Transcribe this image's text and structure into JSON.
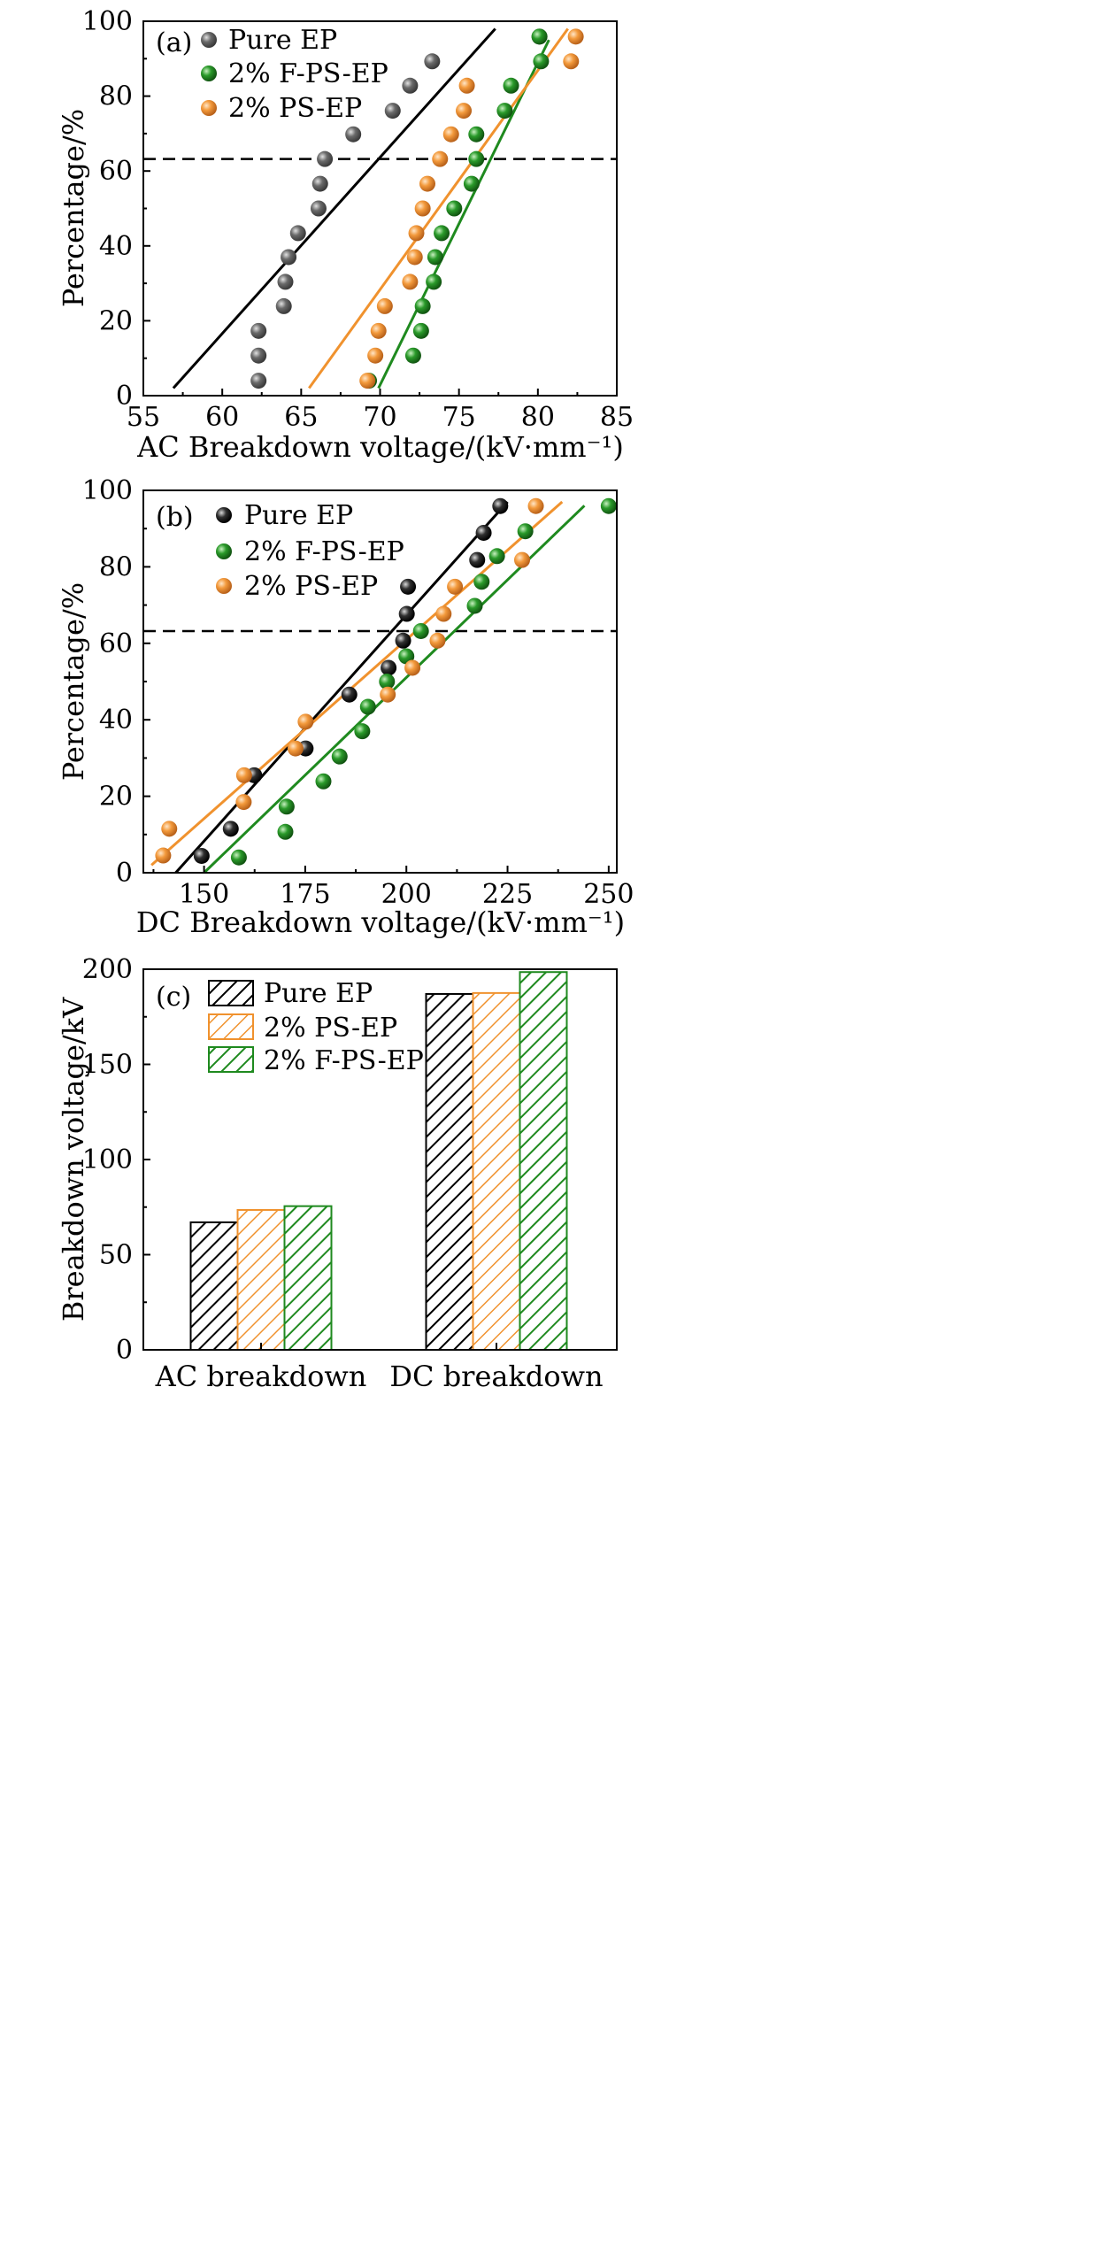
{
  "colors": {
    "pure": "#000000",
    "pure_marker_a": "#555555",
    "ps": "#f0922e",
    "fps": "#1f8a1f",
    "dash": "#000000"
  },
  "chart_data": [
    {
      "type": "scatter",
      "panel_label": "(a)",
      "xlabel": "AC Breakdown voltage/(kV·mm⁻¹)",
      "ylabel": "Percentage/%",
      "xlim": [
        55,
        85
      ],
      "ylim": [
        0,
        100
      ],
      "xticks": [
        55,
        60,
        65,
        70,
        75,
        80,
        85
      ],
      "yticks": [
        0,
        20,
        40,
        60,
        80,
        100
      ],
      "reference_line_y": 63.2,
      "legend": [
        "Pure EP",
        "2% F-PS-EP",
        "2% PS-EP"
      ],
      "legend_position": "top-left",
      "series": [
        {
          "name": "Pure EP",
          "color_key": "pure_marker_a",
          "line_color_key": "pure",
          "points": [
            [
              62.3,
              4
            ],
            [
              62.3,
              10.7
            ],
            [
              62.3,
              17.3
            ],
            [
              63.9,
              23.9
            ],
            [
              64.0,
              30.4
            ],
            [
              64.2,
              37
            ],
            [
              64.8,
              43.4
            ],
            [
              66.1,
              50
            ],
            [
              66.2,
              56.6
            ],
            [
              66.5,
              63.2
            ],
            [
              68.3,
              69.8
            ],
            [
              70.8,
              76.1
            ],
            [
              71.9,
              82.8
            ],
            [
              73.3,
              89.3
            ],
            [
              80.1,
              95.9
            ]
          ],
          "fit": [
            [
              56.9,
              2
            ],
            [
              77.3,
              98
            ]
          ]
        },
        {
          "name": "2% F-PS-EP",
          "color_key": "fps",
          "line_color_key": "fps",
          "points": [
            [
              69.3,
              4
            ],
            [
              72.1,
              10.7
            ],
            [
              72.6,
              17.3
            ],
            [
              72.7,
              23.9
            ],
            [
              73.4,
              30.4
            ],
            [
              73.5,
              37
            ],
            [
              73.9,
              43.4
            ],
            [
              74.7,
              50
            ],
            [
              75.8,
              56.6
            ],
            [
              76.1,
              63.2
            ],
            [
              76.1,
              69.8
            ],
            [
              77.9,
              76.1
            ],
            [
              78.3,
              82.8
            ],
            [
              80.2,
              89.3
            ],
            [
              80.1,
              95.9
            ]
          ],
          "fit": [
            [
              69.9,
              2
            ],
            [
              80.7,
              95
            ]
          ]
        },
        {
          "name": "2% PS-EP",
          "color_key": "ps",
          "line_color_key": "ps",
          "points": [
            [
              69.2,
              4
            ],
            [
              69.7,
              10.7
            ],
            [
              69.9,
              17.3
            ],
            [
              70.3,
              23.9
            ],
            [
              71.9,
              30.4
            ],
            [
              72.2,
              37
            ],
            [
              72.3,
              43.4
            ],
            [
              72.7,
              50
            ],
            [
              73.0,
              56.6
            ],
            [
              73.8,
              63.2
            ],
            [
              74.5,
              69.8
            ],
            [
              75.3,
              76.1
            ],
            [
              75.5,
              82.8
            ],
            [
              82.1,
              89.3
            ],
            [
              82.4,
              95.9
            ]
          ],
          "fit": [
            [
              65.5,
              2
            ],
            [
              81.9,
              98
            ]
          ]
        }
      ]
    },
    {
      "type": "scatter",
      "panel_label": "(b)",
      "xlabel": "DC Breakdown voltage/(kV·mm⁻¹)",
      "ylabel": "Percentage/%",
      "xlim": [
        135,
        252
      ],
      "ylim": [
        0,
        100
      ],
      "xticks": [
        150,
        175,
        200,
        225,
        250
      ],
      "yticks": [
        0,
        20,
        40,
        60,
        80,
        100
      ],
      "reference_line_y": 63.2,
      "legend": [
        "Pure EP",
        "2% F-PS-EP",
        "2% PS-EP"
      ],
      "legend_position": "top-left",
      "series": [
        {
          "name": "Pure EP",
          "color_key": "pure",
          "line_color_key": "pure",
          "points": [
            [
              149.4,
              4.4
            ],
            [
              156.6,
              11.5
            ],
            [
              162.4,
              25.5
            ],
            [
              175.1,
              32.5
            ],
            [
              185.9,
              46.6
            ],
            [
              195.6,
              53.6
            ],
            [
              199.2,
              60.7
            ],
            [
              200.1,
              67.7
            ],
            [
              200.4,
              74.8
            ],
            [
              217.5,
              81.8
            ],
            [
              219.1,
              88.9
            ],
            [
              223.2,
              95.9
            ]
          ],
          "fit": [
            [
              143,
              0
            ],
            [
              225,
              97
            ]
          ]
        },
        {
          "name": "2% F-PS-EP",
          "color_key": "fps",
          "line_color_key": "fps",
          "points": [
            [
              158.6,
              4
            ],
            [
              170.1,
              10.7
            ],
            [
              170.4,
              17.3
            ],
            [
              179.5,
              23.9
            ],
            [
              183.5,
              30.4
            ],
            [
              189.1,
              37
            ],
            [
              190.5,
              43.4
            ],
            [
              195.2,
              50
            ],
            [
              200.0,
              56.6
            ],
            [
              203.6,
              63.2
            ],
            [
              216.9,
              69.8
            ],
            [
              218.6,
              76.1
            ],
            [
              222.4,
              82.8
            ],
            [
              229.4,
              89.3
            ],
            [
              250.0,
              95.9
            ]
          ],
          "fit": [
            [
              150,
              0
            ],
            [
              244,
              96
            ]
          ]
        },
        {
          "name": "2% PS-EP",
          "color_key": "ps",
          "line_color_key": "ps",
          "points": [
            [
              139.9,
              4.5
            ],
            [
              141.4,
              11.5
            ],
            [
              159.8,
              18.5
            ],
            [
              159.9,
              25.5
            ],
            [
              172.6,
              32.5
            ],
            [
              175.1,
              39.5
            ],
            [
              195.4,
              46.6
            ],
            [
              201.5,
              53.6
            ],
            [
              207.7,
              60.7
            ],
            [
              209.2,
              67.7
            ],
            [
              212.0,
              74.8
            ],
            [
              228.6,
              81.8
            ],
            [
              232.0,
              95.9
            ]
          ],
          "fit": [
            [
              137,
              2
            ],
            [
              238.5,
              97
            ]
          ]
        }
      ]
    },
    {
      "type": "bar",
      "panel_label": "(c)",
      "ylabel": "Breakdown voltage/kV",
      "categories": [
        "AC breakdown",
        "DC breakdown"
      ],
      "ylim": [
        0,
        200
      ],
      "yticks": [
        0,
        50,
        100,
        150,
        200
      ],
      "legend": [
        "Pure EP",
        "2% PS-EP",
        "2% F-PS-EP"
      ],
      "legend_position": "top-left",
      "series": [
        {
          "name": "Pure EP",
          "color_key": "pure",
          "values": [
            67,
            187
          ]
        },
        {
          "name": "2% PS-EP",
          "color_key": "ps",
          "values": [
            73.5,
            187.5
          ]
        },
        {
          "name": "2% F-PS-EP",
          "color_key": "fps",
          "values": [
            75.5,
            198.5
          ]
        }
      ]
    }
  ]
}
